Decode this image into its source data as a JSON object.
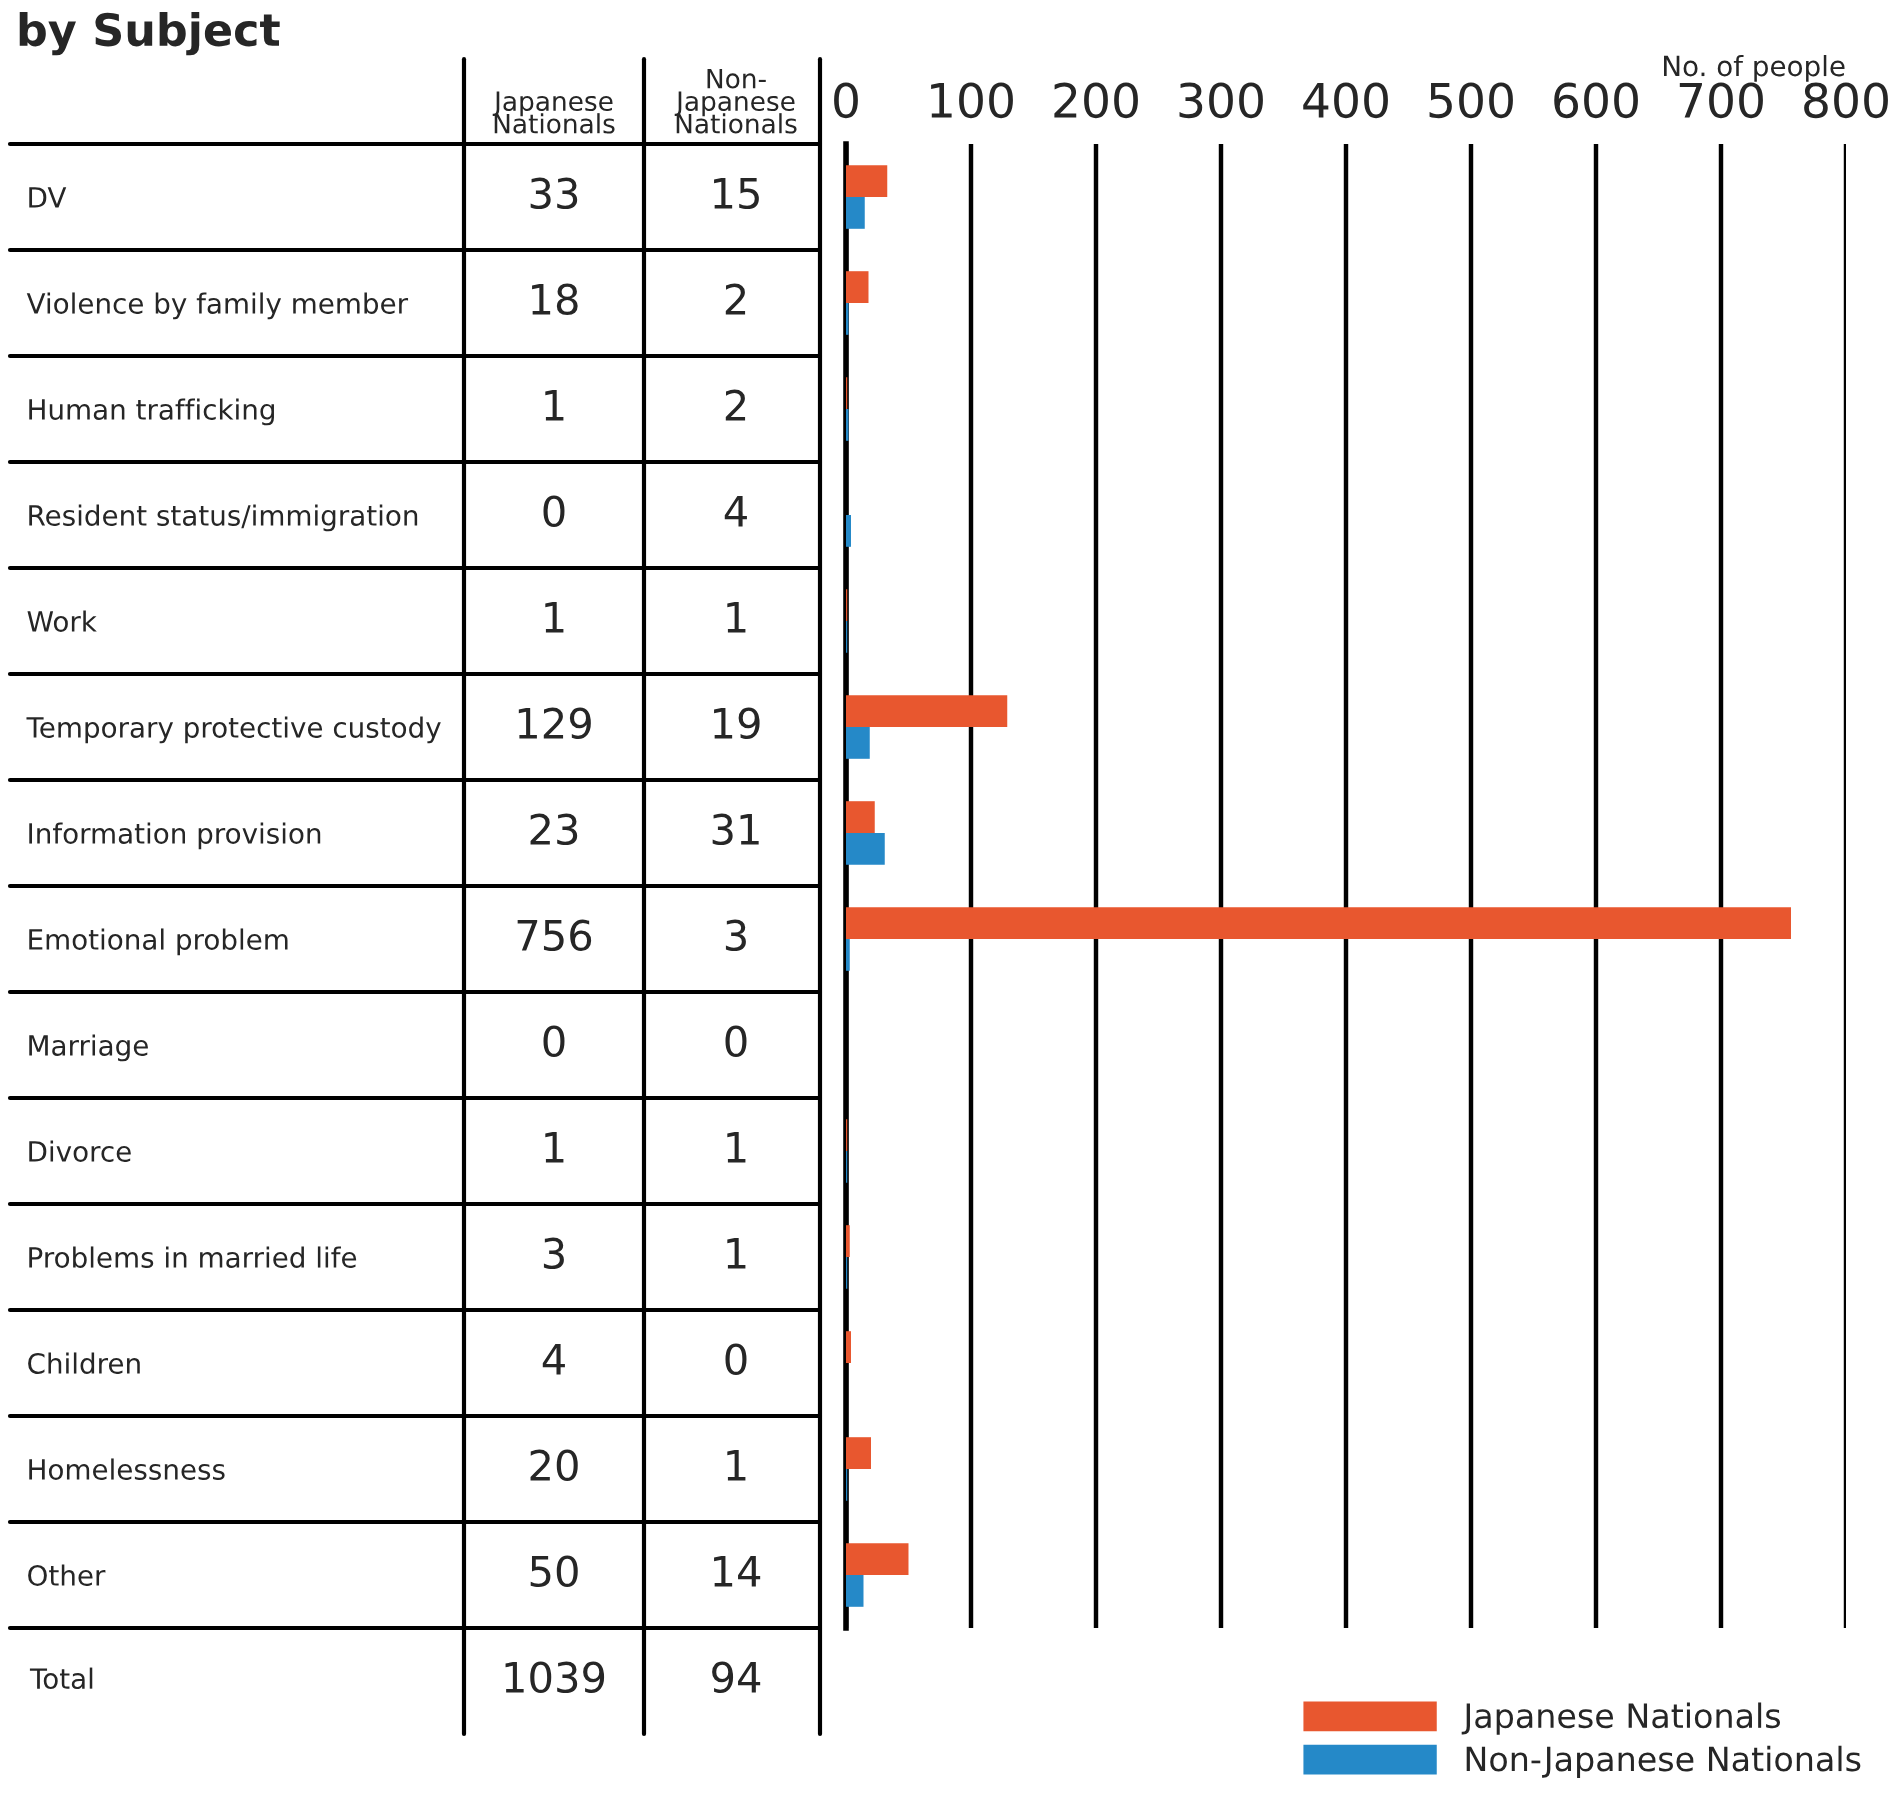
{
  "chart_data": {
    "type": "bar",
    "orientation": "horizontal",
    "title": "by Subject",
    "x2label": "No. of people",
    "categories": [
      "DV",
      "Violence by family member",
      "Human trafficking",
      "Resident status/immigration",
      "Work",
      "Temporary protective custody",
      "Information provision",
      "Emotional problem",
      "Marriage",
      "Divorce",
      "Problems in married life",
      "Children",
      "Homelessness",
      "Other"
    ],
    "series": [
      {
        "name": "Japanese Nationals",
        "color": "#e8572f",
        "values": [
          33,
          18,
          1,
          0,
          1,
          129,
          23,
          756,
          0,
          1,
          3,
          4,
          20,
          50
        ]
      },
      {
        "name": "Non-Japanese Nationals",
        "color": "#2589c8",
        "values": [
          15,
          2,
          2,
          4,
          1,
          19,
          31,
          3,
          0,
          1,
          1,
          0,
          1,
          14
        ]
      }
    ],
    "annotations": [
      "Total",
      "1039",
      "94"
    ],
    "data_labels": true,
    "x2lim": [
      0,
      800
    ],
    "x2ticks": [
      0,
      100,
      200,
      300,
      400,
      500,
      600,
      700,
      800
    ],
    "grid": "x",
    "legend": "bottom right"
  }
}
